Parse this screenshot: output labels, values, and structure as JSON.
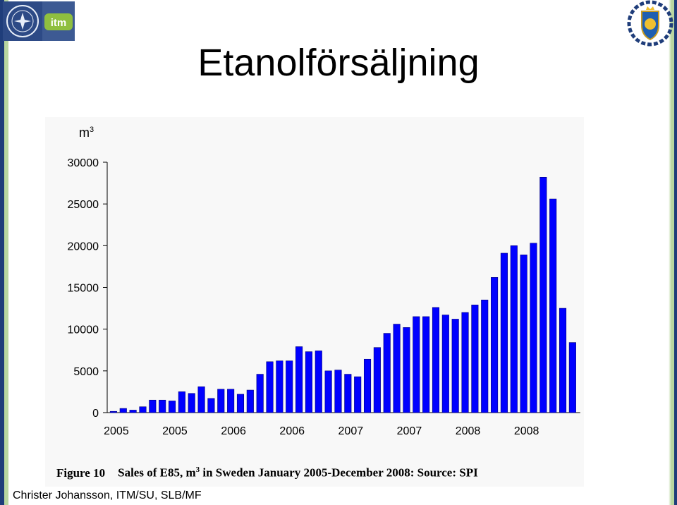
{
  "slide": {
    "title": "Etanolförsäljning",
    "author": "Christer Johansson, ITM/SU, SLB/MF",
    "logo_itm_text": "itm"
  },
  "caption": {
    "figure": "Figure 10",
    "text_before": "Sales of E85, m",
    "superscript": "3",
    "text_after": " in Sweden January 2005-December 2008: Source: SPI"
  },
  "colors": {
    "bar": "#0000ff",
    "bar_edge": "#00007a",
    "frame_dark": "#1f3d7a",
    "frame_light": "#b9d6a0"
  },
  "chart_data": {
    "type": "bar",
    "ylabel": "m",
    "ylabel_superscript": "3",
    "ylim": [
      0,
      30000
    ],
    "y_ticks": [
      0,
      5000,
      10000,
      15000,
      20000,
      25000,
      30000
    ],
    "x_tick_labels": [
      "2005",
      "2005",
      "2006",
      "2006",
      "2007",
      "2007",
      "2008",
      "2008"
    ],
    "x_tick_positions": [
      0,
      6,
      12,
      18,
      24,
      30,
      36,
      42
    ],
    "grid": false,
    "values": [
      150,
      500,
      300,
      700,
      1500,
      1500,
      1400,
      2500,
      2300,
      3100,
      1700,
      2800,
      2800,
      2200,
      2700,
      4600,
      6100,
      6200,
      6200,
      7900,
      7300,
      7400,
      5000,
      5100,
      4600,
      4300,
      6400,
      7800,
      9500,
      10600,
      10200,
      11500,
      11500,
      12600,
      11700,
      11200,
      12000,
      12900,
      13500,
      16200,
      19100,
      20000,
      18900,
      20300,
      28200,
      25600,
      12500,
      8400
    ]
  }
}
